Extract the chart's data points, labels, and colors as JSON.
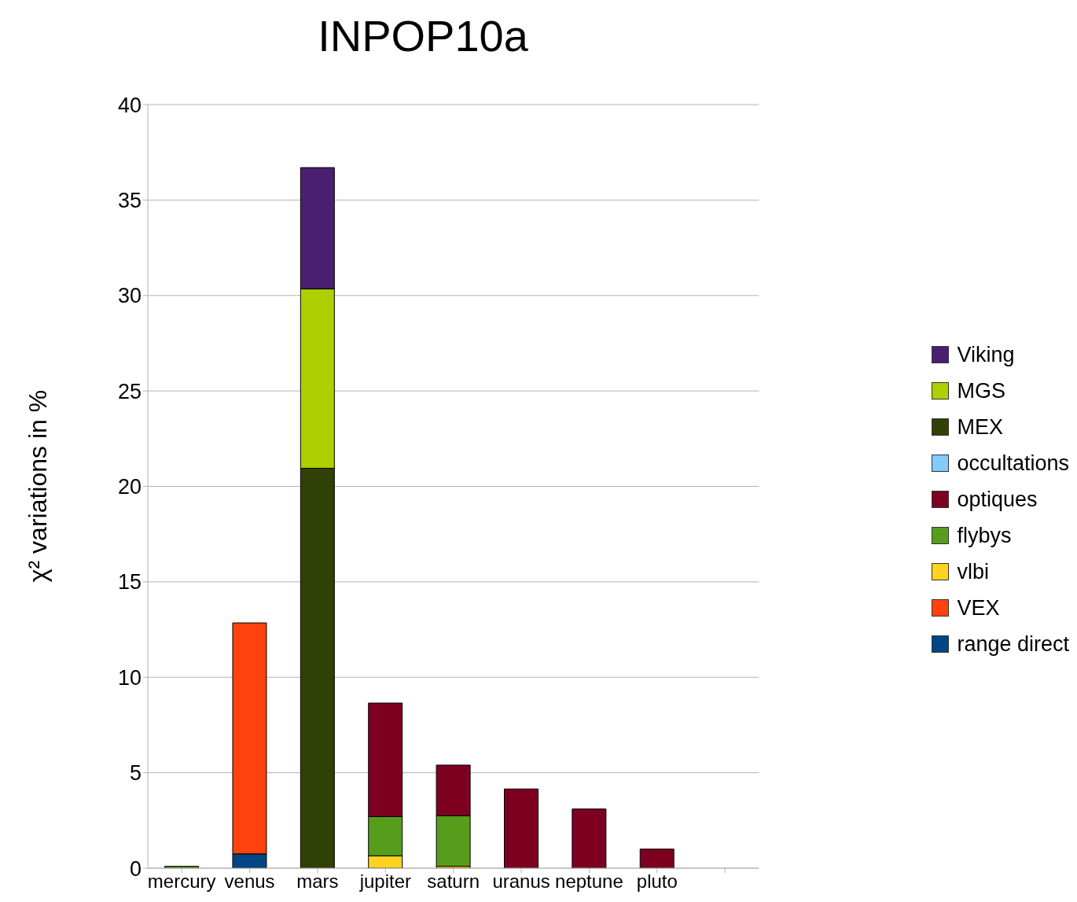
{
  "chart_data": {
    "type": "bar",
    "title": "INPOP10a",
    "ylabel": "χ² variations in %",
    "stacked": true,
    "categories": [
      "mercury",
      "venus",
      "mars",
      "jupiter",
      "saturn",
      "uranus",
      "neptune",
      "pluto",
      null
    ],
    "series": [
      {
        "name": "range direct",
        "color": "#004586",
        "values": [
          null,
          0.75,
          null,
          null,
          null,
          null,
          null,
          null,
          null
        ]
      },
      {
        "name": "VEX",
        "color": "#ff420e",
        "values": [
          null,
          12.1,
          null,
          null,
          null,
          null,
          null,
          null,
          null
        ]
      },
      {
        "name": "vlbi",
        "color": "#ffd320",
        "values": [
          null,
          null,
          null,
          0.65,
          0.1,
          null,
          null,
          null,
          null
        ]
      },
      {
        "name": "flybys",
        "color": "#579d1c",
        "values": [
          0.1,
          null,
          null,
          2.05,
          2.65,
          null,
          null,
          null,
          null
        ]
      },
      {
        "name": "optiques",
        "color": "#7e0021",
        "values": [
          null,
          null,
          null,
          5.95,
          2.65,
          4.15,
          3.1,
          1.0,
          null
        ]
      },
      {
        "name": "occultations",
        "color": "#83caff",
        "values": [
          null,
          null,
          null,
          null,
          null,
          null,
          null,
          null,
          null
        ]
      },
      {
        "name": "MEX",
        "color": "#314004",
        "values": [
          null,
          null,
          20.95,
          null,
          null,
          null,
          null,
          null,
          null
        ]
      },
      {
        "name": "MGS",
        "color": "#aecf00",
        "values": [
          null,
          null,
          9.4,
          null,
          null,
          null,
          null,
          null,
          null
        ]
      },
      {
        "name": "Viking",
        "color": "#4b1f6f",
        "values": [
          null,
          null,
          6.35,
          null,
          null,
          null,
          null,
          null,
          null
        ]
      }
    ],
    "ylim": [
      0,
      40
    ],
    "yticks": [
      0,
      5,
      10,
      15,
      20,
      25,
      30,
      35,
      40
    ],
    "grid": "y",
    "legend": "right"
  }
}
